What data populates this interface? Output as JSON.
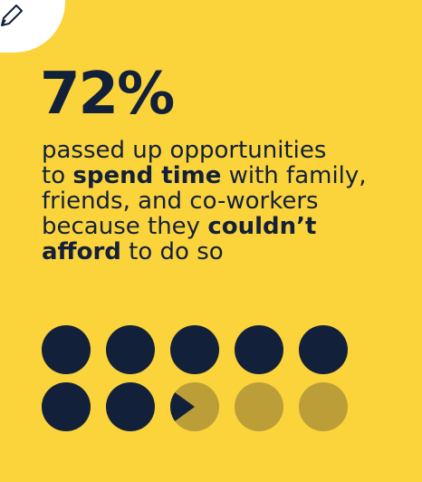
{
  "stat": {
    "value": "72%"
  },
  "description": {
    "line1": "passed up opportunities",
    "line2_pre": "to ",
    "line2_bold": "spend time",
    "line2_post": " with family,",
    "line3": "friends, and co-workers",
    "line4_pre": "because they ",
    "line4_bold": "couldn’t",
    "line5_bold": "afford",
    "line5_post": " to do so"
  },
  "dot_grid": {
    "total": 10,
    "filled_fraction": 0.72,
    "filled_color": "#12203a",
    "empty_color": "#bb9e38"
  },
  "colors": {
    "background": "#fbd33b",
    "text": "#12203a"
  },
  "icons": {
    "corner": "pencil-icon"
  }
}
